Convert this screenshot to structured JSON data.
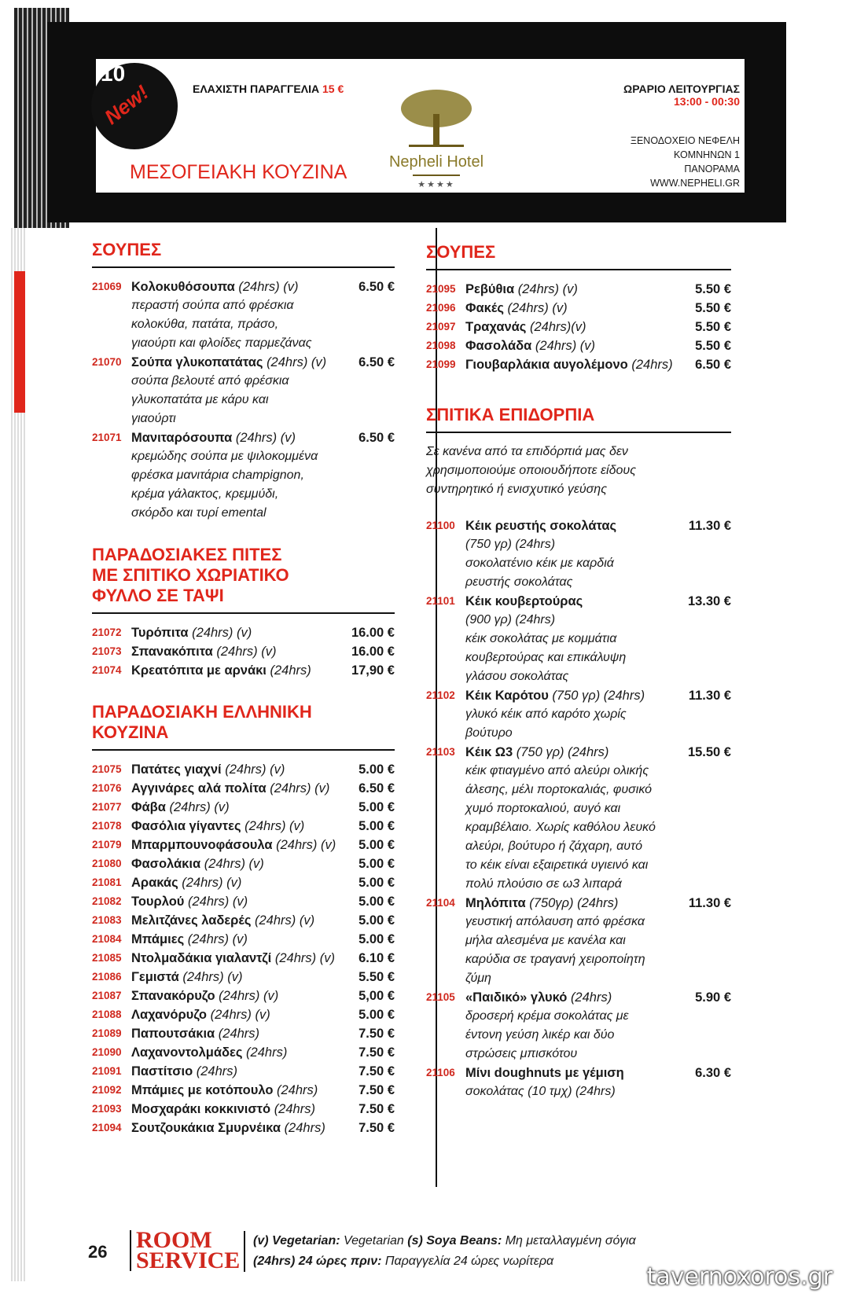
{
  "header": {
    "page_number": "10",
    "new_badge": "New!",
    "min_order_label": "ΕΛΑΧΙΣΤΗ ΠΑΡΑΓΓΕΛΙΑ",
    "min_order_value": "15 €",
    "cuisine": "ΜΕΣΟΓΕΙΑΚΗ ΚΟΥΖΙΝΑ",
    "logo_name": "Nepheli Hotel",
    "logo_stars": "★★★★",
    "hours_label": "ΩΡΑΡΙΟ ΛΕΙΤΟΥΡΓΙΑΣ",
    "hours": "13:00 - 00:30",
    "address": [
      "ΞΕΝΟΔΟΧΕΙΟ ΝΕΦΕΛΗ",
      "ΚΟΜΝΗΝΩΝ 1",
      "ΠΑΝΟΡΑΜΑ",
      "WWW.NEPHELI.GR"
    ]
  },
  "left": [
    {
      "title": [
        "ΣΟΥΠΕΣ"
      ],
      "items": [
        {
          "code": "21069",
          "name": "Κολοκυθόσουπα",
          "note": "(24hrs) (v)",
          "price": "6.50 €",
          "desc": [
            "περαστή σούπα από φρέσκια",
            "κολοκύθα, πατάτα, πράσο,",
            "γιαούρτι και φλοίδες παρμεζάνας"
          ]
        },
        {
          "code": "21070",
          "name": "Σούπα γλυκοπατάτας",
          "note": "(24hrs) (v)",
          "price": "6.50 €",
          "desc": [
            "σούπα βελουτέ από φρέσκια",
            "γλυκοπατάτα με κάρυ και",
            "γιαούρτι"
          ]
        },
        {
          "code": "21071",
          "name": "Μανιταρόσουπα",
          "note": "(24hrs) (v)",
          "price": "6.50 €",
          "desc": [
            "κρεμώδης σούπα με ψιλοκομμένα",
            "φρέσκα μανιτάρια champignon,",
            "κρέμα γάλακτος, κρεμμύδι,",
            "σκόρδο και τυρί emental"
          ]
        }
      ]
    },
    {
      "title": [
        "ΠΑΡΑΔΟΣΙΑΚΕΣ ΠΙΤΕΣ",
        "ΜΕ ΣΠΙΤΙΚΟ ΧΩΡΙΑΤΙΚΟ",
        "ΦΥΛΛΟ ΣΕ ΤΑΨΙ"
      ],
      "items": [
        {
          "code": "21072",
          "name": "Τυρόπιτα",
          "note": "(24hrs) (v)",
          "price": "16.00 €"
        },
        {
          "code": "21073",
          "name": "Σπανακόπιτα",
          "note": "(24hrs) (v)",
          "price": "16.00 €"
        },
        {
          "code": "21074",
          "name": "Κρεατόπιτα με αρνάκι",
          "note": "(24hrs)",
          "price": "17,90 €"
        }
      ]
    },
    {
      "title": [
        "ΠΑΡΑΔΟΣΙΑΚΗ ΕΛΛΗΝΙΚΗ",
        "ΚΟΥΖΙΝΑ"
      ],
      "items": [
        {
          "code": "21075",
          "name": "Πατάτες γιαχνί",
          "note": "(24hrs) (v)",
          "price": "5.00 €"
        },
        {
          "code": "21076",
          "name": "Αγγινάρες αλά πολίτα",
          "note": "(24hrs) (v)",
          "price": "6.50 €"
        },
        {
          "code": "21077",
          "name": "Φάβα",
          "note": "(24hrs) (v)",
          "price": "5.00 €"
        },
        {
          "code": "21078",
          "name": "Φασόλια γίγαντες",
          "note": "(24hrs) (v)",
          "price": "5.00 €"
        },
        {
          "code": "21079",
          "name": "Μπαρμπουνοφάσουλα",
          "note": "(24hrs) (v)",
          "price": "5.00 €"
        },
        {
          "code": "21080",
          "name": "Φασολάκια",
          "note": "(24hrs) (v)",
          "price": "5.00 €"
        },
        {
          "code": "21081",
          "name": "Αρακάς",
          "note": "(24hrs) (v)",
          "price": "5.00 €"
        },
        {
          "code": "21082",
          "name": "Τουρλού",
          "note": "(24hrs) (v)",
          "price": "5.00 €"
        },
        {
          "code": "21083",
          "name": "Μελιτζάνες λαδερές",
          "note": "(24hrs) (v)",
          "price": "5.00 €"
        },
        {
          "code": "21084",
          "name": "Μπάμιες",
          "note": "(24hrs) (v)",
          "price": "5.00 €"
        },
        {
          "code": "21085",
          "name": "Ντολμαδάκια γιαλαντζί",
          "note": "(24hrs) (v)",
          "price": "6.10 €"
        },
        {
          "code": "21086",
          "name": "Γεμιστά",
          "note": "(24hrs) (v)",
          "price": "5.50 €"
        },
        {
          "code": "21087",
          "name": "Σπανακόρυζο",
          "note": "(24hrs) (v)",
          "price": "5,00 €"
        },
        {
          "code": "21088",
          "name": "Λαχανόρυζο",
          "note": "(24hrs) (v)",
          "price": "5.00 €"
        },
        {
          "code": "21089",
          "name": "Παπουτσάκια",
          "note": "(24hrs)",
          "price": "7.50 €"
        },
        {
          "code": "21090",
          "name": "Λαχανοντολμάδες",
          "note": "(24hrs)",
          "price": "7.50 €"
        },
        {
          "code": "21091",
          "name": "Παστίτσιο",
          "note": "(24hrs)",
          "price": "7.50 €"
        },
        {
          "code": "21092",
          "name": "Μπάμιες με κοτόπουλο",
          "note": "(24hrs)",
          "price": "7.50 €"
        },
        {
          "code": "21093",
          "name": "Μοσχαράκι κοκκινιστό",
          "note": "(24hrs)",
          "price": "7.50 €"
        },
        {
          "code": "21094",
          "name": "Σουτζουκάκια Σμυρνέικα",
          "note": "(24hrs)",
          "price": "7.50 €"
        }
      ]
    }
  ],
  "right": [
    {
      "title": [
        "ΣΟΥΠΕΣ"
      ],
      "items": [
        {
          "code": "21095",
          "name": "Ρεβύθια",
          "note": "(24hrs) (v)",
          "price": "5.50 €"
        },
        {
          "code": "21096",
          "name": "Φακές",
          "note": "(24hrs) (v)",
          "price": "5.50 €"
        },
        {
          "code": "21097",
          "name": "Τραχανάς",
          "note": "(24hrs)(v)",
          "price": "5.50 €"
        },
        {
          "code": "21098",
          "name": "Φασολάδα",
          "note": "(24hrs) (v)",
          "price": "5.50 €"
        },
        {
          "code": "21099",
          "name": "Γιουβαρλάκια αυγολέμονο",
          "note": "(24hrs)",
          "price": "6.50 €"
        }
      ]
    },
    {
      "title": [
        "ΣΠΙΤΙΚΑ ΕΠΙΔΟΡΠΙΑ"
      ],
      "intro": [
        "Σε κανένα από τα επιδόρπιά μας δεν",
        "χρησιμοποιούμε οποιουδήποτε είδους",
        "συντηρητικό ή ενισχυτικό γεύσης"
      ],
      "items": [
        {
          "code": "21100",
          "name": "Κέικ ρευστής σοκολάτας",
          "note": "",
          "price": "11.30 €",
          "desc": [
            "(750 γρ) (24hrs)",
            "σοκολατένιο κέικ με καρδιά",
            "ρευστής σοκολάτας"
          ]
        },
        {
          "code": "21101",
          "name": "Κέικ κουβερτούρας",
          "note": "",
          "price": "13.30 €",
          "desc": [
            "(900 γρ) (24hrs)",
            "κέικ σοκολάτας με κομμάτια",
            "κουβερτούρας και επικάλυψη",
            "γλάσου σοκολάτας"
          ]
        },
        {
          "code": "21102",
          "name": "Κέικ Καρότου",
          "note": "(750 γρ) (24hrs)",
          "price": "11.30 €",
          "desc": [
            "γλυκό κέικ από καρότο χωρίς",
            "βούτυρο"
          ]
        },
        {
          "code": "21103",
          "name": "Κέικ Ω3",
          "note": "(750 γρ) (24hrs)",
          "price": "15.50 €",
          "desc": [
            "κέικ φτιαγμένο από αλεύρι ολικής",
            "άλεσης, μέλι πορτοκαλιάς, φυσικό",
            "χυμό πορτοκαλιού, αυγό και",
            "κραμβέλαιο. Χωρίς καθόλου λευκό",
            "αλεύρι, βούτυρο ή ζάχαρη, αυτό",
            "το κέικ είναι εξαιρετικά υγιεινό και",
            "πολύ πλούσιο σε ω3 λιπαρά"
          ]
        },
        {
          "code": "21104",
          "name": "Μηλόπιτα",
          "note": "(750γρ) (24hrs)",
          "price": "11.30 €",
          "desc": [
            "γευστική απόλαυση από φρέσκα",
            "μήλα αλεσμένα με κανέλα και",
            "καρύδια σε τραγανή χειροποίητη",
            "ζύμη"
          ]
        },
        {
          "code": "21105",
          "name": "«Παιδικό» γλυκό",
          "note": "(24hrs)",
          "price": "5.90 €",
          "desc": [
            "δροσερή κρέμα σοκολάτας με",
            "έντονη γεύση λικέρ και δύο",
            "στρώσεις μπισκότου"
          ]
        },
        {
          "code": "21106",
          "name": "Μίνι doughnuts με γέμιση",
          "note": "",
          "price": "6.30 €",
          "desc": [
            "σοκολάτας (10 τμχ) (24hrs)"
          ]
        }
      ]
    }
  ],
  "footer": {
    "page_number": "26",
    "brand": [
      "ROOM",
      "SERVICE"
    ],
    "legend1_code": "(v) Vegetarian:",
    "legend1_text": " Vegetarian ",
    "legend2_code": "(s) Soya Beans:",
    "legend2_text": " Μη μεταλλαγμένη σόγια",
    "legend3_code": "(24hrs) 24 ώρες πριν:",
    "legend3_text": " Παραγγελία 24 ώρες νωρίτερα"
  },
  "watermark": "tavernoxoros.gr",
  "colors": {
    "accent": "#e0261b",
    "band": "#0d0d0d"
  }
}
